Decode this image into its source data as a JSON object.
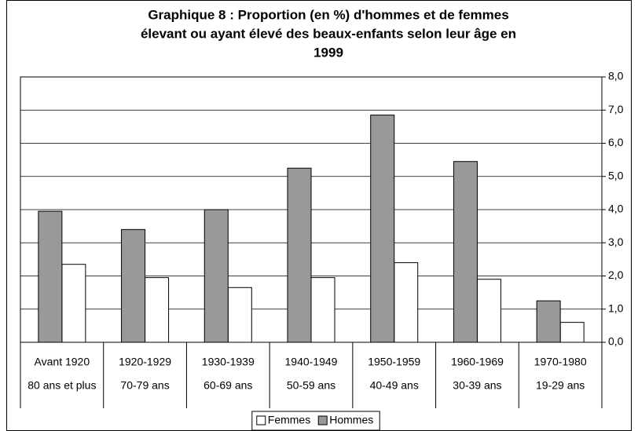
{
  "chart_data": {
    "type": "bar",
    "title": [
      "Graphique 8 : Proportion (en %) d'hommes et de femmes",
      "élevant ou ayant élevé des beaux-enfants selon leur âge en",
      "1999"
    ],
    "categories": [
      [
        "Avant 1920",
        "80 ans et plus"
      ],
      [
        "1920-1929",
        "70-79 ans"
      ],
      [
        "1930-1939",
        "60-69 ans"
      ],
      [
        "1940-1949",
        "50-59 ans"
      ],
      [
        "1950-1959",
        "40-49 ans"
      ],
      [
        "1960-1969",
        "30-39 ans"
      ],
      [
        "1970-1980",
        "19-29 ans"
      ]
    ],
    "series": [
      {
        "name": "Femmes",
        "color": "#ffffff",
        "values": [
          2.35,
          1.95,
          1.65,
          1.95,
          2.4,
          1.9,
          0.6
        ]
      },
      {
        "name": "Hommes",
        "color": "#999999",
        "values": [
          3.95,
          3.4,
          4.0,
          5.25,
          6.85,
          5.45,
          1.25
        ]
      }
    ],
    "ylim": [
      0,
      8
    ],
    "yticks": [
      {
        "value": 0,
        "label": "0,0"
      },
      {
        "value": 1,
        "label": "1,0"
      },
      {
        "value": 2,
        "label": "2,0"
      },
      {
        "value": 3,
        "label": "3,0"
      },
      {
        "value": 4,
        "label": "4,0"
      },
      {
        "value": 5,
        "label": "5,0"
      },
      {
        "value": 6,
        "label": "6,0"
      },
      {
        "value": 7,
        "label": "7,0"
      },
      {
        "value": 8,
        "label": "8,0"
      }
    ],
    "grid": true,
    "y_axis_side": "right",
    "legend": "bottom"
  }
}
